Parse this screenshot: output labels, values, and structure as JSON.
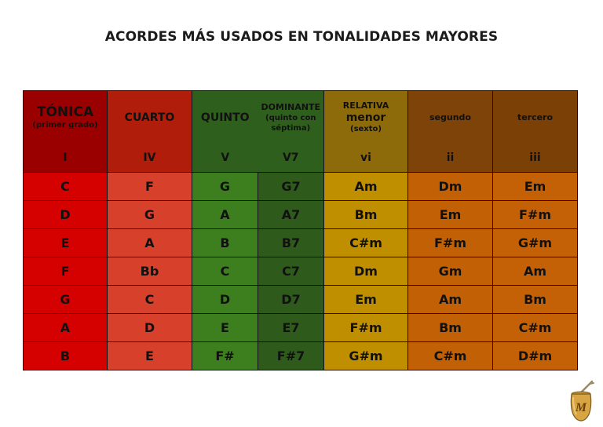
{
  "title": "ACORDES MÁS USADOS EN TONALIDADES MAYORES",
  "columns": [
    {
      "name": "TÓNICA",
      "sub": "(primer grado)",
      "degree": "I"
    },
    {
      "name": "CUARTO",
      "degree": "IV"
    },
    {
      "name": "QUINTO",
      "degree": "V"
    },
    {
      "name": "DOMINANTE",
      "sub": "(quinto con séptima)",
      "degree": "V7"
    },
    {
      "name": "RELATIVA",
      "name2": "menor",
      "sub": "(sexto)",
      "degree": "vi"
    },
    {
      "name": "segundo",
      "degree": "ii"
    },
    {
      "name": "tercero",
      "degree": "iii"
    }
  ],
  "rows": [
    [
      "C",
      "F",
      "G",
      "G7",
      "Am",
      "Dm",
      "Em"
    ],
    [
      "D",
      "G",
      "A",
      "A7",
      "Bm",
      "Em",
      "F#m"
    ],
    [
      "E",
      "A",
      "B",
      "B7",
      "C#m",
      "F#m",
      "G#m"
    ],
    [
      "F",
      "Bb",
      "C",
      "C7",
      "Dm",
      "Gm",
      "Am"
    ],
    [
      "G",
      "C",
      "D",
      "D7",
      "Em",
      "Am",
      "Bm"
    ],
    [
      "A",
      "D",
      "E",
      "E7",
      "F#m",
      "Bm",
      "C#m"
    ],
    [
      "B",
      "E",
      "F#",
      "F#7",
      "G#m",
      "C#m",
      "D#m"
    ]
  ],
  "logo": {
    "letter": "M",
    "icon": "mate-gourd-icon"
  }
}
